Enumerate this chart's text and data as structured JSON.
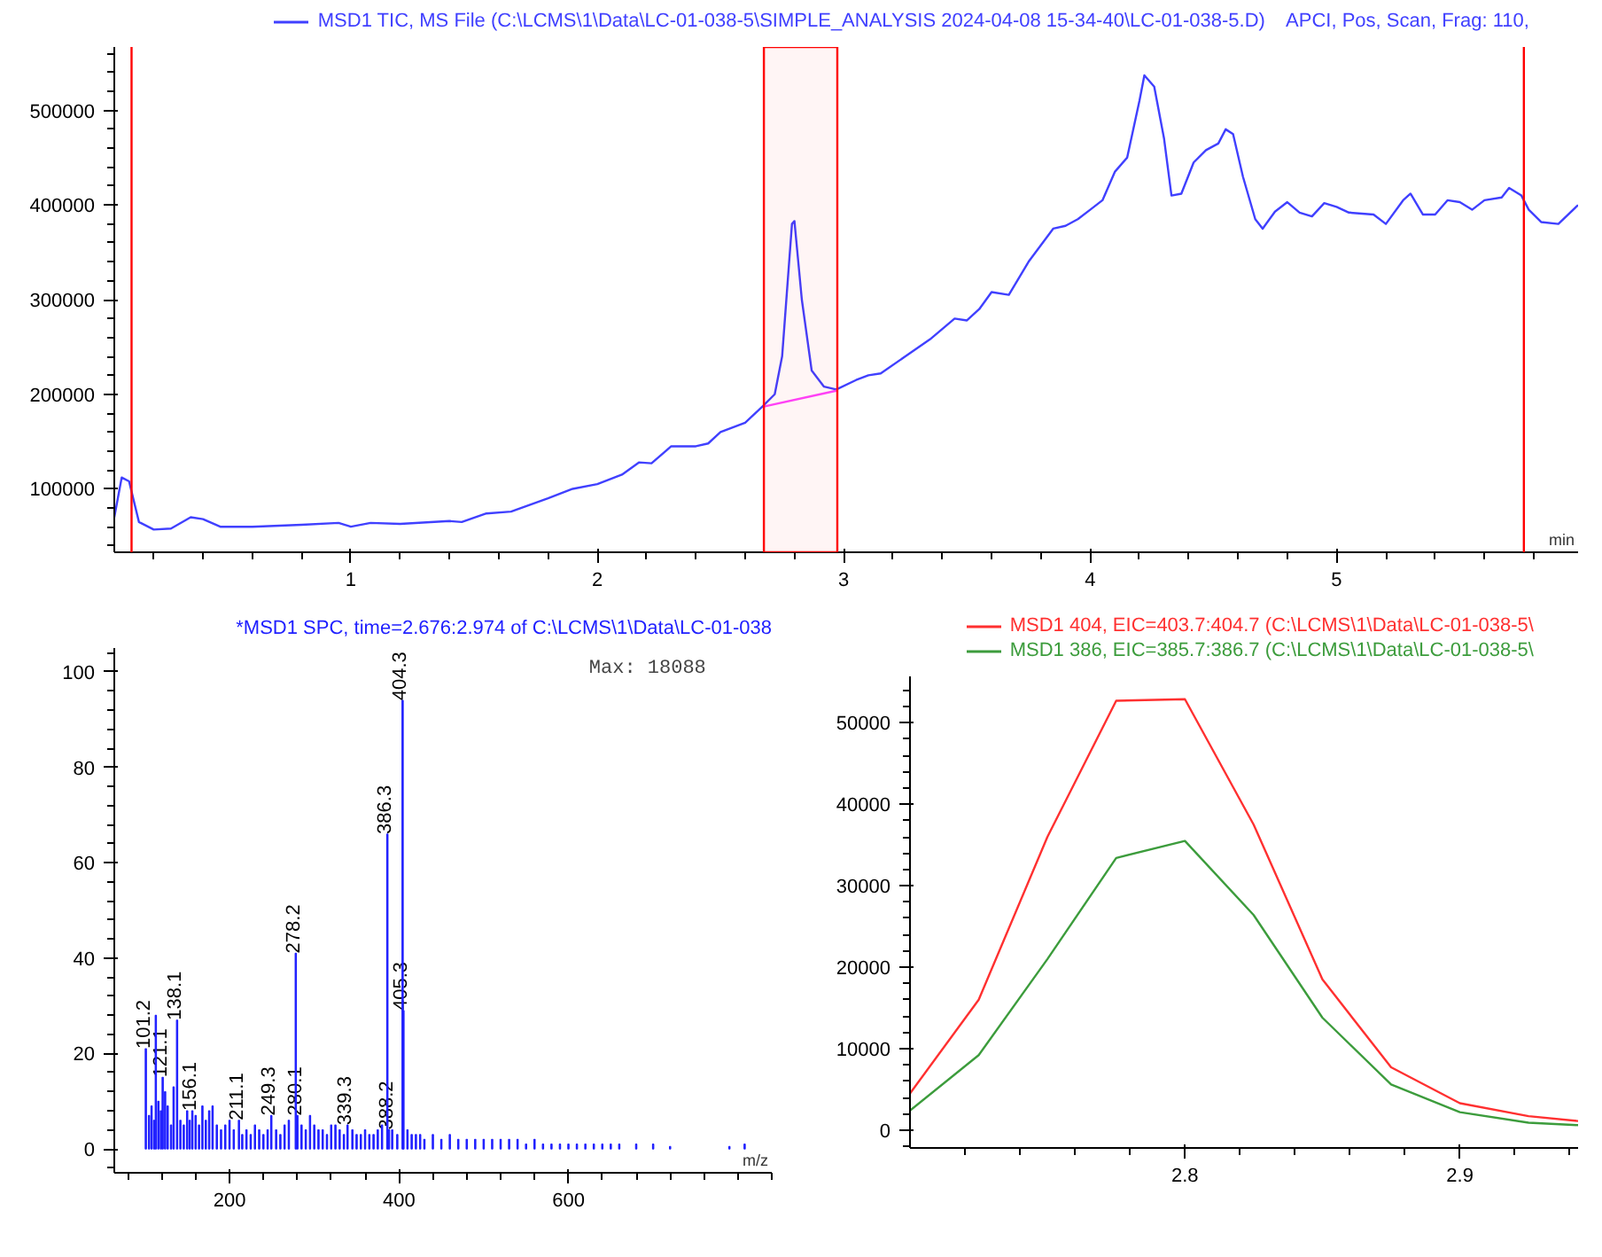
{
  "chart_data": [
    {
      "type": "line",
      "xlim": [
        0.04,
        5.98
      ],
      "ylim": [
        33000,
        567000
      ],
      "xticks": [
        1,
        2,
        3,
        4,
        5
      ],
      "yticks": [
        100000,
        200000,
        300000,
        400000,
        500000
      ],
      "xlabel": "min",
      "legend": "top",
      "grid": false,
      "series": [
        {
          "name": "MSD1 TIC, MS File (C:\\LCMS\\1\\Data\\LC-01-038-5\\SIMPLE_ANALYSIS 2024-04-08 15-34-40\\LC-01-038-5.D)    APCI, Pos, Scan, Frag: 110,",
          "color": "#4040ff",
          "x": [
            0.04,
            0.07,
            0.1,
            0.14,
            0.2,
            0.27,
            0.35,
            0.4,
            0.47,
            0.6,
            0.8,
            0.95,
            1.0,
            1.08,
            1.2,
            1.4,
            1.45,
            1.55,
            1.65,
            1.8,
            1.9,
            2.0,
            2.1,
            2.17,
            2.22,
            2.3,
            2.4,
            2.45,
            2.5,
            2.6,
            2.67,
            2.72,
            2.75,
            2.79,
            2.8,
            2.83,
            2.87,
            2.92,
            2.97,
            3.05,
            3.1,
            3.15,
            3.25,
            3.35,
            3.45,
            3.5,
            3.55,
            3.6,
            3.67,
            3.75,
            3.85,
            3.9,
            3.95,
            4.0,
            4.05,
            4.1,
            4.15,
            4.2,
            4.22,
            4.26,
            4.3,
            4.33,
            4.37,
            4.42,
            4.47,
            4.52,
            4.55,
            4.58,
            4.62,
            4.67,
            4.7,
            4.75,
            4.8,
            4.85,
            4.9,
            4.95,
            5.0,
            5.05,
            5.15,
            5.2,
            5.27,
            5.3,
            5.35,
            5.4,
            5.45,
            5.5,
            5.55,
            5.6,
            5.67,
            5.7,
            5.75,
            5.78,
            5.83,
            5.9,
            5.98
          ],
          "values": [
            70000,
            112000,
            108000,
            65000,
            57000,
            58000,
            70000,
            68000,
            60000,
            60000,
            62000,
            64000,
            60000,
            64000,
            63000,
            66000,
            65000,
            74000,
            76000,
            90000,
            100000,
            105000,
            115000,
            128000,
            127000,
            145000,
            145000,
            148000,
            160000,
            170000,
            187000,
            200000,
            240000,
            380000,
            383000,
            300000,
            225000,
            208000,
            205000,
            215000,
            220000,
            222000,
            240000,
            258000,
            280000,
            278000,
            290000,
            308000,
            305000,
            340000,
            375000,
            378000,
            385000,
            395000,
            405000,
            435000,
            450000,
            510000,
            537000,
            525000,
            470000,
            410000,
            412000,
            445000,
            458000,
            465000,
            480000,
            475000,
            430000,
            385000,
            375000,
            393000,
            403000,
            392000,
            388000,
            402000,
            398000,
            392000,
            390000,
            380000,
            405000,
            412000,
            390000,
            390000,
            405000,
            403000,
            395000,
            405000,
            408000,
            418000,
            410000,
            395000,
            382000,
            380000,
            400000
          ]
        },
        {
          "color": "#ff44ff",
          "x": [
            2.676,
            2.974
          ],
          "values": [
            187000,
            204000
          ]
        }
      ],
      "ref_lines": [
        {
          "axis": "x",
          "value": 0.11,
          "color": "#ff0000"
        },
        {
          "axis": "x",
          "value": 5.76,
          "color": "#ff0000"
        }
      ],
      "bands": [
        {
          "axis": "x",
          "from": 2.676,
          "to": 2.974,
          "color": "#ff0000"
        }
      ]
    },
    {
      "type": "bar",
      "title": "*MSD1 SPC, time=2.676:2.974 of C:\\LCMS\\1\\Data\\LC-01-038",
      "xlim": [
        64,
        840
      ],
      "ylim": [
        -5,
        105
      ],
      "xticks": [
        200,
        400,
        600
      ],
      "yticks": [
        0,
        20,
        40,
        60,
        80,
        100
      ],
      "xlabel": "m/z",
      "grid": false,
      "annotations": [
        "Max: 18088",
        {
          "text": "101.2",
          "x": 101.2,
          "y": 21
        },
        {
          "text": "121.1",
          "x": 121.1,
          "y": 15
        },
        {
          "text": "138.1",
          "x": 138.1,
          "y": 27
        },
        {
          "text": "156.1",
          "x": 156.1,
          "y": 8
        },
        {
          "text": "211.1",
          "x": 211.1,
          "y": 6
        },
        {
          "text": "249.3",
          "x": 249.3,
          "y": 7
        },
        {
          "text": "278.2",
          "x": 278.2,
          "y": 41
        },
        {
          "text": "280.1",
          "x": 280.1,
          "y": 7
        },
        {
          "text": "339.3",
          "x": 339.3,
          "y": 5
        },
        {
          "text": "386.3",
          "x": 386.3,
          "y": 66
        },
        {
          "text": "388.2",
          "x": 388.2,
          "y": 4
        },
        {
          "text": "404.3",
          "x": 404.3,
          "y": 94
        },
        {
          "text": "405.3",
          "x": 405.3,
          "y": 29
        }
      ],
      "series": [
        {
          "color": "#2020ff",
          "x": [
            101.2,
            105,
            108,
            111,
            113,
            116,
            119,
            121.1,
            124,
            127,
            131,
            134,
            138.1,
            142,
            146,
            150,
            153,
            156.1,
            160,
            164,
            168,
            172,
            176,
            180,
            185,
            190,
            195,
            200,
            205,
            211.1,
            215,
            220,
            225,
            230,
            235,
            240,
            245,
            249.3,
            255,
            260,
            265,
            270,
            278.2,
            280.1,
            285,
            290,
            295,
            300,
            305,
            310,
            315,
            320,
            325,
            330,
            335,
            339.3,
            345,
            350,
            355,
            360,
            365,
            370,
            375,
            380,
            386.3,
            388.2,
            392,
            398,
            404.3,
            405.3,
            410,
            415,
            420,
            425,
            430,
            440,
            450,
            460,
            470,
            480,
            490,
            500,
            510,
            520,
            530,
            540,
            550,
            560,
            570,
            580,
            590,
            600,
            610,
            620,
            630,
            640,
            650,
            660,
            680,
            700,
            720,
            790,
            808
          ],
          "values": [
            21,
            7,
            9,
            6,
            28,
            10,
            8,
            15,
            12,
            9,
            5,
            13,
            27,
            6,
            5,
            8,
            6,
            8,
            7,
            5,
            9,
            6,
            8,
            9,
            5,
            4,
            5,
            6,
            4,
            6,
            3,
            4,
            3,
            5,
            4,
            3,
            4,
            7,
            4,
            3,
            5,
            6,
            41,
            7,
            5,
            4,
            7,
            5,
            4,
            4,
            3,
            5,
            5,
            4,
            3,
            5,
            4,
            3,
            3,
            4,
            3,
            3,
            4,
            5,
            66,
            4,
            4,
            3,
            94,
            29,
            4,
            3,
            3,
            3,
            2,
            3,
            2,
            3,
            2,
            2,
            2,
            2,
            2,
            2,
            2,
            2,
            1,
            2,
            1,
            1,
            1,
            1,
            1,
            1,
            1,
            1,
            1,
            1,
            1,
            1,
            0.5,
            0.5,
            1
          ]
        }
      ]
    },
    {
      "type": "line",
      "xlim": [
        2.7,
        2.943
      ],
      "ylim": [
        -2200,
        55700
      ],
      "xticks": [
        2.8,
        2.9
      ],
      "yticks": [
        0,
        10000,
        20000,
        30000,
        40000,
        50000
      ],
      "legend": "top left",
      "grid": false,
      "series": [
        {
          "name": "MSD1 404, EIC=403.7:404.7 (C:\\LCMS\\1\\Data\\LC-01-038-5\\",
          "color": "#ff3030",
          "x": [
            2.7,
            2.725,
            2.75,
            2.775,
            2.8,
            2.825,
            2.85,
            2.875,
            2.9,
            2.925,
            2.943
          ],
          "values": [
            4500,
            16000,
            36000,
            52700,
            52900,
            37500,
            18500,
            7700,
            3300,
            1700,
            1100
          ]
        },
        {
          "name": "MSD1 386, EIC=385.7:386.7 (C:\\LCMS\\1\\Data\\LC-01-038-5\\",
          "color": "#3c9c3c",
          "x": [
            2.7,
            2.725,
            2.75,
            2.775,
            2.8,
            2.825,
            2.85,
            2.875,
            2.9,
            2.925,
            2.943
          ],
          "values": [
            2400,
            9200,
            21000,
            33400,
            35500,
            26400,
            13800,
            5600,
            2200,
            900,
            600
          ]
        }
      ]
    }
  ]
}
